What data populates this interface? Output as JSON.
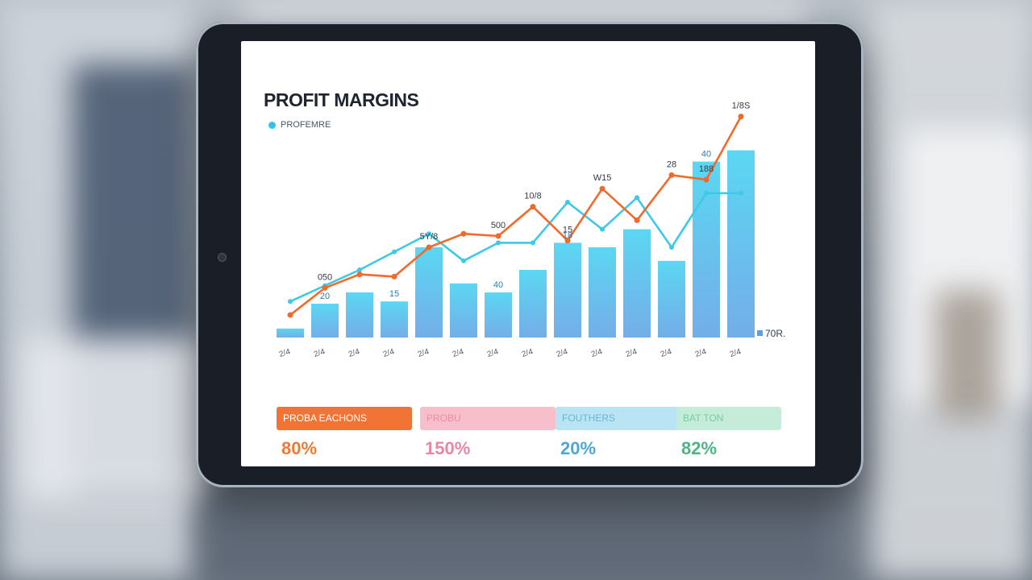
{
  "screen": {
    "title": "PROFIT MARGINS",
    "legend_label": "PROFEMRE"
  },
  "chart_data": {
    "type": "bar",
    "categories": [
      "2/4",
      "2/4",
      "2/4",
      "2/4",
      "2/4",
      "2/4",
      "2/4",
      "2/4",
      "2/4",
      "2/4",
      "2/4",
      "2/4",
      "2/4",
      "2/4"
    ],
    "bars": [
      4,
      15,
      20,
      16,
      40,
      24,
      20,
      30,
      42,
      40,
      48,
      34,
      78,
      83
    ],
    "bar_line": [
      16,
      23,
      30,
      38,
      46,
      34,
      42,
      42,
      60,
      48,
      62,
      40,
      64,
      64
    ],
    "top_line": [
      10,
      22,
      28,
      27,
      40,
      46,
      45,
      58,
      43,
      66,
      52,
      72,
      70,
      98
    ],
    "bar_labels": [
      {
        "index": 1,
        "text": "20"
      },
      {
        "index": 3,
        "text": "15"
      },
      {
        "index": 6,
        "text": "40"
      },
      {
        "index": 8,
        "text": "18"
      },
      {
        "index": 12,
        "text": "40"
      }
    ],
    "line_labels": [
      {
        "index": 1,
        "text": "050"
      },
      {
        "index": 4,
        "text": "5Y/8"
      },
      {
        "index": 6,
        "text": "500"
      },
      {
        "index": 7,
        "text": "10/8"
      },
      {
        "index": 8,
        "text": "15"
      },
      {
        "index": 9,
        "text": "W15"
      },
      {
        "index": 11,
        "text": "28"
      },
      {
        "index": 12,
        "text": "188"
      },
      {
        "index": 13,
        "text": "1/8S"
      }
    ],
    "end_label": "70R.",
    "colors": {
      "bar": "#5fb9ec",
      "bar_line": "#3ec9e6",
      "top_line": "#f06a2c"
    },
    "ylim": [
      0,
      100
    ]
  },
  "kpis": [
    {
      "label": "PROBA EACHONS",
      "value": "80%"
    },
    {
      "label": "PROBU",
      "value": "150%"
    },
    {
      "label": "FOUTHERS",
      "value": "20%"
    },
    {
      "label": "BAT TON",
      "value": "82%"
    }
  ]
}
